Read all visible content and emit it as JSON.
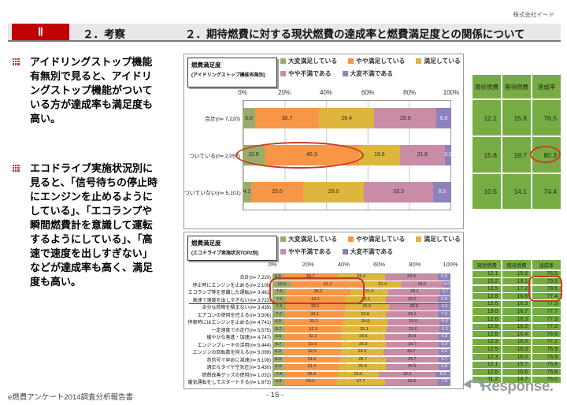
{
  "header": {
    "company": "株式会社イード",
    "roman": "Ⅱ",
    "section": "２．考察",
    "title": "２．期待燃費に対する現状燃費の達成率と燃費満足度との関係について"
  },
  "sidebar": {
    "bullets": [
      "アイドリングストップ機能有無別で見ると、アイドリングストップ機能がついている方が達成率も満足度も高い。",
      "エコドライブ実施状況別に見ると、「信号待ちの停止時にエンジンを止めるようにしている」、「エコランプや瞬間燃費計を意識して運転するようにしている」、「高速で速度を出しすぎない」などが達成率も高く、満足度も高い。"
    ]
  },
  "colors": {
    "segments": [
      "#9bab6b",
      "#f79646",
      "#dfb63c",
      "#c98ba6",
      "#8f80be"
    ],
    "table_green": "#77ac45",
    "accent_red": "#c00000",
    "annotation_red": "#c43c23",
    "header_bg": "#e8e8e8"
  },
  "chart_data": [
    {
      "type": "bar",
      "stacked": true,
      "orientation": "horizontal",
      "title": "燃費満足度",
      "subtitle": "(アイドリングストップ機能有無別)",
      "xlim": [
        0,
        100
      ],
      "x_ticks": [
        "0%",
        "20%",
        "40%",
        "60%",
        "80%",
        "100%"
      ],
      "legend": [
        "大変満足している",
        "やや満足している",
        "満足している",
        "やや不満である",
        "大変不満である"
      ],
      "legend_position": "top",
      "categories": [
        "合計(n= 7,220)",
        "ついている(n= 2,057)",
        "ついていない(n= 5,101)"
      ],
      "series": [
        {
          "name": "大変満足している",
          "values": [
            6.0,
            10.5,
            4.1
          ]
        },
        {
          "name": "やや満足している",
          "values": [
            30.7,
            45.3,
            25.0
          ]
        },
        {
          "name": "満足している",
          "values": [
            26.4,
            19.6,
            29.0
          ]
        },
        {
          "name": "やや不満である",
          "values": [
            29.9,
            21.6,
            33.3
          ]
        },
        {
          "name": "大変不満である",
          "values": [
            6.9,
            3.0,
            8.5
          ]
        }
      ],
      "highlight": {
        "category": "ついている(n= 2,057)",
        "segments": [
          "大変満足している",
          "やや満足している"
        ]
      }
    },
    {
      "type": "bar",
      "stacked": true,
      "orientation": "horizontal",
      "title": "燃費満足度",
      "subtitle": "(エコドライブ実施状況TOP2別)",
      "xlim": [
        0,
        100
      ],
      "x_ticks": [
        "0%",
        "20%",
        "40%",
        "60%",
        "80%",
        "100%"
      ],
      "legend": [
        "大変満足している",
        "やや満足している",
        "満足している",
        "やや不満である",
        "大変不満である"
      ],
      "legend_position": "top",
      "categories": [
        "合計(n= 7,220)",
        "停止時にエンジンを止める(n= 2,108)",
        "エコランプ等を意識した運転(n= 3,461)",
        "高速で速度を出しすぎない(n= 3,723)",
        "余分な荷物を積まない(n= 3,439)",
        "エアコンの使用を控える(n= 3,506)",
        "停車時にはエンジンを止める(n= 4,741)",
        "一定速度での走行(n= 5,575)",
        "緩やかな発進・加速(n= 4,747)",
        "エンジンブレーキの活用(n= 5,444)",
        "エンジンの回転数を抑える(n= 5,099)",
        "赤信号で早めに減速(n= 6,108)",
        "適正なタイヤ空気圧(n= 5,430)",
        "燃費改善グッズの使用(n= 1,032)",
        "暖気運転をしてスタートする(n= 1,673)"
      ],
      "series": [
        {
          "name": "大変満足している",
          "values": [
            6.0,
            10.4,
            7.6,
            7.6,
            7.4,
            7.2,
            6.5,
            6.7,
            6.6,
            6.7,
            6.3,
            6.3,
            6.4,
            7.4,
            6.8
          ]
        },
        {
          "name": "やや満足している",
          "values": [
            30.7,
            41.2,
            36.2,
            33.1,
            33.1,
            33.1,
            33.3,
            32.3,
            32.2,
            31.6,
            32.0,
            31.6,
            31.4,
            29.3,
            29.0
          ]
        },
        {
          "name": "満足している",
          "values": [
            26.4,
            20.4,
            21.4,
            23.2,
            25.0,
            23.6,
            24.8,
            25.1,
            24.6,
            25.5,
            24.3,
            25.7,
            25.9,
            23.0,
            27.7
          ]
        },
        {
          "name": "やや不満である",
          "values": [
            29.9,
            24.0,
            29.1,
            29.2,
            28.0,
            29.1,
            29.0,
            29.6,
            29.9,
            29.7,
            30.7,
            29.7,
            29.6,
            32.2,
            29.6
          ]
        },
        {
          "name": "大変不満である",
          "values": [
            6.9,
            4.0,
            5.7,
            6.8,
            6.5,
            7.0,
            6.4,
            6.3,
            6.8,
            6.4,
            6.6,
            6.7,
            6.8,
            8.2,
            7.0
          ]
        }
      ],
      "highlight": {
        "categories": [
          "停止時にエンジンを止める(n= 2,108)",
          "エコランプ等を意識した運転(n= 3,461)",
          "高速で速度を出しすぎない(n= 3,723)"
        ],
        "segments": [
          "大変満足している",
          "やや満足している"
        ]
      }
    }
  ],
  "tables": [
    {
      "headers": [
        "現状燃費",
        "期待燃費",
        "達成率"
      ],
      "rows": [
        [
          "12.1",
          "15.8",
          "76.5"
        ],
        [
          "15.8",
          "19.7",
          "80.3"
        ],
        [
          "10.5",
          "14.1",
          "74.4"
        ]
      ],
      "highlight": {
        "rows": [
          1
        ],
        "column": "達成率"
      }
    },
    {
      "headers": [
        "現状燃費",
        "期待燃費",
        "達成率"
      ],
      "rows": [
        [
          "12.1",
          "15.8",
          "76.5"
        ],
        [
          "15.2",
          "19.1",
          "79.5"
        ],
        [
          "13.5",
          "17.2",
          "78.5"
        ],
        [
          "12.8",
          "16.6",
          "77.4"
        ],
        [
          "12.6",
          "16.3",
          "77.3"
        ],
        [
          "13.0",
          "16.7",
          "77.7"
        ],
        [
          "12.6",
          "16.3",
          "77.3"
        ],
        [
          "12.5",
          "16.2",
          "77.2"
        ],
        [
          "12.6",
          "16.4",
          "76.8"
        ],
        [
          "12.3",
          "16.0",
          "77.2"
        ],
        [
          "12.5",
          "16.3",
          "76.9"
        ],
        [
          "12.3",
          "16.0",
          "76.9"
        ],
        [
          "12.1",
          "15.7",
          "76.8"
        ],
        [
          "12.6",
          "16.6",
          "75.8"
        ],
        [
          "11.2",
          "14.7",
          "76.0"
        ]
      ],
      "highlight": {
        "rows": [
          1,
          2,
          3
        ],
        "column": "達成率"
      }
    }
  ],
  "footer": {
    "left": "e燃費アンケート2014調査分析報告書",
    "page": "- 15 -",
    "logo": "Response."
  }
}
